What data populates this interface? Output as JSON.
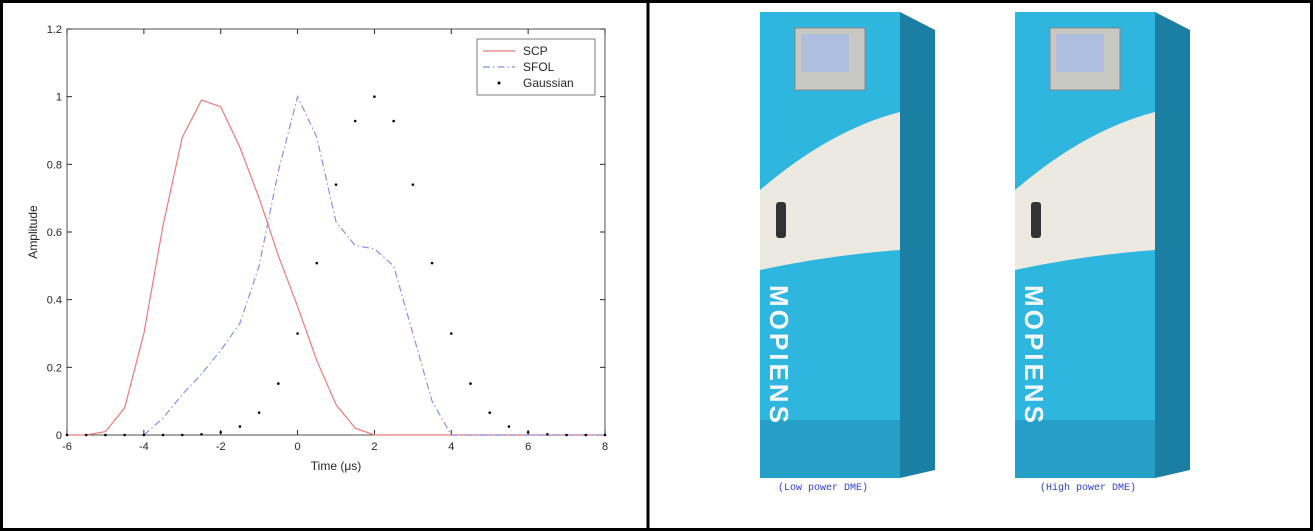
{
  "chart_data": {
    "type": "line",
    "xlabel": "Time (μs)",
    "ylabel": "Amplitude",
    "x": [
      -6,
      -5.5,
      -5,
      -4.5,
      -4,
      -3.5,
      -3,
      -2.5,
      -2,
      -1.5,
      -1,
      -0.5,
      0,
      0.5,
      1,
      1.5,
      2,
      2.5,
      3,
      3.5,
      4,
      4.5,
      5,
      5.5,
      6,
      6.5,
      7,
      7.5,
      8
    ],
    "series": [
      {
        "name": "SCP",
        "color": "#f07a7a",
        "style": "solid",
        "values": [
          0,
          0,
          0.01,
          0.08,
          0.3,
          0.62,
          0.88,
          0.99,
          0.97,
          0.85,
          0.7,
          0.53,
          0.38,
          0.22,
          0.09,
          0.02,
          0,
          0,
          0,
          0,
          0,
          0,
          0,
          0,
          0,
          0,
          0,
          0,
          0
        ]
      },
      {
        "name": "SFOL",
        "color": "#8a8ef0",
        "style": "dashdot",
        "values": [
          null,
          null,
          null,
          null,
          0,
          0.05,
          0.12,
          0.18,
          0.25,
          0.33,
          0.5,
          0.78,
          1,
          0.88,
          0.63,
          0.56,
          0.55,
          0.5,
          0.3,
          0.1,
          0,
          0,
          0,
          0,
          0,
          0,
          0,
          0,
          0
        ]
      },
      {
        "name": "Gaussian",
        "color": "#000000",
        "style": "dots",
        "values": [
          0,
          0,
          0,
          0,
          0,
          0,
          0,
          0.002,
          0.008,
          0.025,
          0.066,
          0.152,
          0.3,
          0.508,
          0.74,
          0.928,
          1,
          0.928,
          0.74,
          0.508,
          0.3,
          0.152,
          0.066,
          0.025,
          0.008,
          0.002,
          0,
          0,
          0
        ]
      }
    ],
    "xlim": [
      -6,
      8
    ],
    "ylim": [
      0,
      1.2
    ],
    "xticks": [
      -6,
      -4,
      -2,
      0,
      2,
      4,
      6,
      8
    ],
    "yticks": [
      0,
      0.2,
      0.4,
      0.6,
      0.8,
      1,
      1.2
    ],
    "legend": "upper right"
  },
  "photo": {
    "brand": "MOPIENS",
    "captions": [
      "(Low power DME)",
      "(High power DME)"
    ]
  }
}
